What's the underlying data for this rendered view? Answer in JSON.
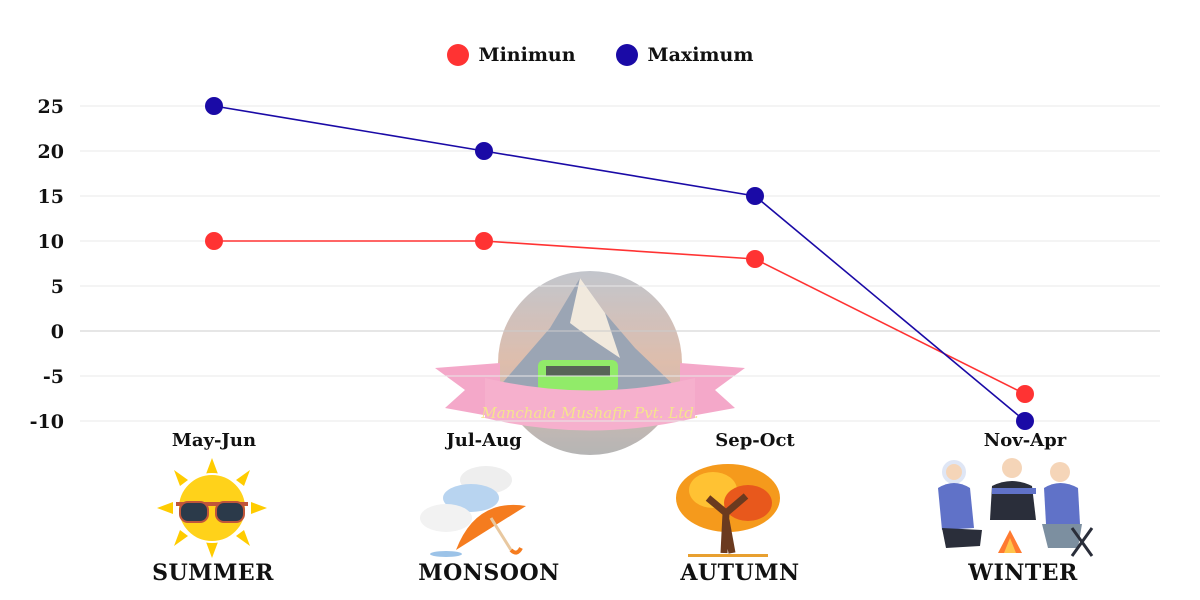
{
  "legend": {
    "items": [
      {
        "label": "Minimun",
        "color": "#ff3333"
      },
      {
        "label": "Maximum",
        "color": "#1a0aa6"
      }
    ]
  },
  "seasons": [
    {
      "period": "May-Jun",
      "name": "SUMMER",
      "icon": "sun-with-sunglasses-icon"
    },
    {
      "period": "Jul-Aug",
      "name": "MONSOON",
      "icon": "rain-cloud-umbrella-icon"
    },
    {
      "period": "Sep-Oct",
      "name": "AUTUMN",
      "icon": "autumn-tree-icon"
    },
    {
      "period": "Nov-Apr",
      "name": "WINTER",
      "icon": "people-campfire-icon"
    }
  ],
  "watermark": {
    "text": "Manchala Mushafir Pvt. Ltd."
  },
  "chart_data": {
    "type": "line",
    "title": "",
    "xlabel": "",
    "ylabel": "",
    "categories": [
      "May-Jun",
      "Jul-Aug",
      "Sep-Oct",
      "Nov-Apr"
    ],
    "series": [
      {
        "name": "Minimun",
        "color": "#ff3333",
        "values": [
          10,
          10,
          8,
          -7
        ]
      },
      {
        "name": "Maximum",
        "color": "#1a0aa6",
        "values": [
          25,
          20,
          15,
          -10
        ]
      }
    ],
    "yticks": [
      25,
      20,
      15,
      10,
      5,
      0,
      -5,
      -10
    ],
    "ylim": [
      -10,
      25
    ],
    "grid": true,
    "legend_position": "top"
  }
}
